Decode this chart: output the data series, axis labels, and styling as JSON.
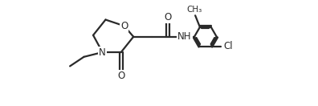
{
  "bg_color": "#ffffff",
  "line_color": "#2a2a2a",
  "line_width": 1.6,
  "font_size": 8.5,
  "xlim": [
    -1.8,
    12.5
  ],
  "ylim": [
    -2.2,
    4.5
  ],
  "figsize": [
    3.96,
    1.32
  ],
  "dpi": 100
}
